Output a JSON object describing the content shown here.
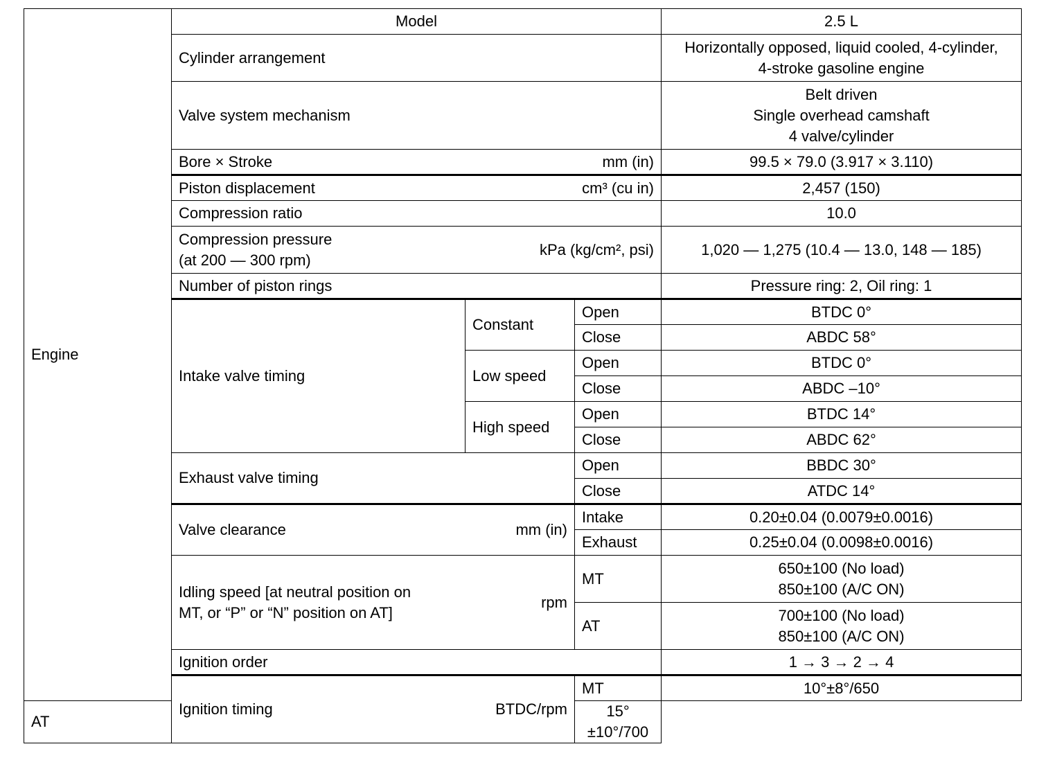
{
  "section": "Engine",
  "model": {
    "label": "Model",
    "value": "2.5 L"
  },
  "cylinder": {
    "label": "Cylinder arrangement",
    "values": [
      "Horizontally opposed, liquid cooled, 4-cylinder,",
      "4-stroke gasoline engine"
    ]
  },
  "valve_system": {
    "label": "Valve system mechanism",
    "values": [
      "Belt driven",
      "Single overhead camshaft",
      "4 valve/cylinder"
    ]
  },
  "bore": {
    "label": "Bore × Stroke",
    "unit": "mm (in)",
    "value": "99.5 × 79.0 (3.917 × 3.110)"
  },
  "displacement": {
    "label": "Piston displacement",
    "unit": "cm³ (cu in)",
    "value": "2,457 (150)"
  },
  "compression_ratio": {
    "label": "Compression ratio",
    "value": "10.0"
  },
  "compression_pressure": {
    "labels": [
      "Compression pressure",
      "(at 200 — 300 rpm)"
    ],
    "unit": "kPa (kg/cm², psi)",
    "value": "1,020 — 1,275 (10.4 — 13.0, 148 — 185)"
  },
  "piston_rings": {
    "label": "Number of piston rings",
    "value": "Pressure ring: 2, Oil ring: 1"
  },
  "intake_timing": {
    "label": "Intake valve timing",
    "groups": [
      {
        "name": "Constant",
        "open": "Open",
        "open_value": "BTDC 0°",
        "close": "Close",
        "close_value": "ABDC 58°"
      },
      {
        "name": "Low speed",
        "open": "Open",
        "open_value": "BTDC 0°",
        "close": "Close",
        "close_value": "ABDC –10°"
      },
      {
        "name": "High speed",
        "open": "Open",
        "open_value": "BTDC 14°",
        "close": "Close",
        "close_value": "ABDC 62°"
      }
    ]
  },
  "exhaust_timing": {
    "label": "Exhaust valve timing",
    "open": "Open",
    "open_value": "BBDC 30°",
    "close": "Close",
    "close_value": "ATDC 14°"
  },
  "valve_clearance": {
    "label": "Valve clearance",
    "unit": "mm (in)",
    "items": [
      {
        "label": "Intake",
        "value": "0.20±0.04 (0.0079±0.0016)"
      },
      {
        "label": "Exhaust",
        "value": "0.25±0.04 (0.0098±0.0016)"
      }
    ]
  },
  "idling": {
    "labels": [
      "Idling speed [at neutral position on",
      "MT, or “P” or “N” position on AT]"
    ],
    "unit": "rpm",
    "items": [
      {
        "label": "MT",
        "values": [
          "650±100 (No load)",
          "850±100 (A/C ON)"
        ]
      },
      {
        "label": "AT",
        "values": [
          "700±100 (No load)",
          "850±100 (A/C ON)"
        ]
      }
    ]
  },
  "ignition_order": {
    "label": "Ignition order",
    "value": "1 → 3 → 2 → 4"
  },
  "ignition_timing": {
    "label": "Ignition timing",
    "unit": "BTDC/rpm",
    "items": [
      {
        "label": "MT",
        "value": "10°±8°/650"
      },
      {
        "label": "AT",
        "value": "15°±10°/700"
      }
    ]
  }
}
